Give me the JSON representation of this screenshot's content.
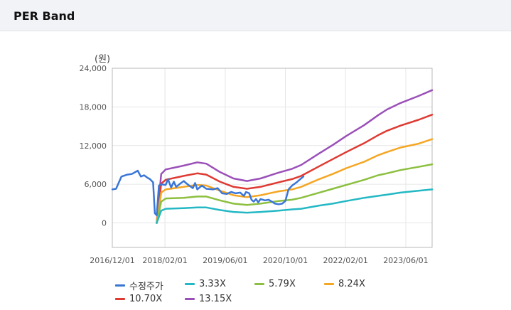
{
  "header": {
    "title": "PER Band"
  },
  "chart_data": {
    "type": "line",
    "unit_label": "(원)",
    "y_ticks": [
      "24,000",
      "18,000",
      "12,000",
      "6,000",
      "0"
    ],
    "y_tick_values": [
      24000,
      18000,
      12000,
      6000,
      0
    ],
    "ylim": [
      -3800,
      24000
    ],
    "x_ticks": [
      "2016/12/01",
      "2018/02/01",
      "2019/06/01",
      "2020/10/01",
      "2022/02/01",
      "2023/06/01"
    ],
    "x_tick_values": [
      2016.917,
      2018.083,
      2019.417,
      2020.75,
      2022.083,
      2023.417
    ],
    "xlim": [
      2016.917,
      2024.0
    ],
    "grid": true,
    "legend_position": "bottom",
    "series": [
      {
        "name": "수정주가",
        "color": "#3a76d6",
        "points": [
          [
            2016.92,
            5200
          ],
          [
            2017.0,
            5300
          ],
          [
            2017.12,
            7200
          ],
          [
            2017.25,
            7500
          ],
          [
            2017.35,
            7600
          ],
          [
            2017.48,
            8100
          ],
          [
            2017.55,
            7200
          ],
          [
            2017.62,
            7400
          ],
          [
            2017.7,
            7000
          ],
          [
            2017.75,
            6800
          ],
          [
            2017.82,
            6300
          ],
          [
            2017.86,
            1500
          ],
          [
            2017.9,
            1200
          ],
          [
            2017.95,
            5800
          ],
          [
            2018.0,
            6000
          ],
          [
            2018.1,
            5900
          ],
          [
            2018.15,
            6800
          ],
          [
            2018.22,
            5500
          ],
          [
            2018.28,
            6400
          ],
          [
            2018.33,
            5600
          ],
          [
            2018.42,
            6100
          ],
          [
            2018.5,
            6500
          ],
          [
            2018.55,
            6200
          ],
          [
            2018.62,
            5800
          ],
          [
            2018.7,
            5400
          ],
          [
            2018.75,
            6200
          ],
          [
            2018.8,
            5200
          ],
          [
            2018.9,
            5800
          ],
          [
            2019.0,
            5300
          ],
          [
            2019.15,
            5200
          ],
          [
            2019.25,
            5400
          ],
          [
            2019.35,
            4600
          ],
          [
            2019.45,
            4500
          ],
          [
            2019.55,
            4800
          ],
          [
            2019.65,
            4600
          ],
          [
            2019.75,
            4700
          ],
          [
            2019.83,
            4200
          ],
          [
            2019.88,
            4800
          ],
          [
            2019.95,
            4600
          ],
          [
            2020.0,
            3600
          ],
          [
            2020.05,
            3300
          ],
          [
            2020.1,
            3700
          ],
          [
            2020.15,
            3200
          ],
          [
            2020.2,
            3700
          ],
          [
            2020.3,
            3500
          ],
          [
            2020.38,
            3600
          ],
          [
            2020.45,
            3300
          ],
          [
            2020.52,
            3000
          ],
          [
            2020.6,
            2900
          ],
          [
            2020.68,
            3000
          ],
          [
            2020.75,
            3400
          ],
          [
            2020.82,
            5200
          ],
          [
            2020.9,
            5800
          ],
          [
            2021.0,
            6300
          ],
          [
            2021.08,
            6800
          ],
          [
            2021.15,
            7200
          ]
        ]
      },
      {
        "name": "3.33X",
        "color": "#23b8c4",
        "points": [
          [
            2017.9,
            0
          ],
          [
            2018.0,
            1900
          ],
          [
            2018.1,
            2200
          ],
          [
            2018.5,
            2300
          ],
          [
            2018.8,
            2400
          ],
          [
            2019.0,
            2400
          ],
          [
            2019.3,
            2000
          ],
          [
            2019.6,
            1700
          ],
          [
            2019.9,
            1600
          ],
          [
            2020.2,
            1700
          ],
          [
            2020.6,
            1900
          ],
          [
            2020.9,
            2100
          ],
          [
            2021.1,
            2200
          ],
          [
            2021.5,
            2700
          ],
          [
            2021.8,
            3000
          ],
          [
            2022.1,
            3400
          ],
          [
            2022.5,
            3900
          ],
          [
            2022.8,
            4200
          ],
          [
            2023.0,
            4400
          ],
          [
            2023.3,
            4700
          ],
          [
            2023.7,
            5000
          ],
          [
            2024.0,
            5200
          ]
        ]
      },
      {
        "name": "5.79X",
        "color": "#8cbf3f",
        "points": [
          [
            2017.9,
            0
          ],
          [
            2018.0,
            3300
          ],
          [
            2018.1,
            3800
          ],
          [
            2018.5,
            3900
          ],
          [
            2018.8,
            4100
          ],
          [
            2019.0,
            4100
          ],
          [
            2019.3,
            3500
          ],
          [
            2019.6,
            3000
          ],
          [
            2019.9,
            2800
          ],
          [
            2020.2,
            3000
          ],
          [
            2020.6,
            3400
          ],
          [
            2020.9,
            3600
          ],
          [
            2021.1,
            3900
          ],
          [
            2021.5,
            4700
          ],
          [
            2021.8,
            5300
          ],
          [
            2022.1,
            5900
          ],
          [
            2022.5,
            6700
          ],
          [
            2022.8,
            7400
          ],
          [
            2023.0,
            7700
          ],
          [
            2023.3,
            8200
          ],
          [
            2023.7,
            8700
          ],
          [
            2024.0,
            9100
          ]
        ]
      },
      {
        "name": "8.24X",
        "color": "#f5a623",
        "points": [
          [
            2017.9,
            0
          ],
          [
            2018.0,
            4700
          ],
          [
            2018.1,
            5200
          ],
          [
            2018.5,
            5600
          ],
          [
            2018.8,
            5900
          ],
          [
            2019.0,
            5800
          ],
          [
            2019.3,
            5000
          ],
          [
            2019.6,
            4300
          ],
          [
            2019.9,
            4000
          ],
          [
            2020.2,
            4300
          ],
          [
            2020.6,
            4900
          ],
          [
            2020.9,
            5200
          ],
          [
            2021.1,
            5600
          ],
          [
            2021.5,
            6800
          ],
          [
            2021.8,
            7600
          ],
          [
            2022.1,
            8500
          ],
          [
            2022.5,
            9500
          ],
          [
            2022.8,
            10500
          ],
          [
            2023.0,
            11000
          ],
          [
            2023.3,
            11700
          ],
          [
            2023.7,
            12300
          ],
          [
            2024.0,
            13000
          ]
        ]
      },
      {
        "name": "10.70X",
        "color": "#de3a32",
        "points": [
          [
            2017.9,
            0
          ],
          [
            2018.0,
            6100
          ],
          [
            2018.1,
            6700
          ],
          [
            2018.5,
            7300
          ],
          [
            2018.8,
            7700
          ],
          [
            2019.0,
            7500
          ],
          [
            2019.3,
            6400
          ],
          [
            2019.6,
            5600
          ],
          [
            2019.9,
            5300
          ],
          [
            2020.2,
            5600
          ],
          [
            2020.6,
            6300
          ],
          [
            2020.9,
            6800
          ],
          [
            2021.1,
            7300
          ],
          [
            2021.5,
            8800
          ],
          [
            2021.8,
            9900
          ],
          [
            2022.1,
            11000
          ],
          [
            2022.5,
            12400
          ],
          [
            2022.8,
            13600
          ],
          [
            2023.0,
            14300
          ],
          [
            2023.3,
            15100
          ],
          [
            2023.7,
            16000
          ],
          [
            2024.0,
            16800
          ]
        ]
      },
      {
        "name": "13.15X",
        "color": "#9a50b8",
        "points": [
          [
            2017.9,
            0
          ],
          [
            2018.0,
            7600
          ],
          [
            2018.1,
            8300
          ],
          [
            2018.5,
            8900
          ],
          [
            2018.8,
            9400
          ],
          [
            2019.0,
            9200
          ],
          [
            2019.3,
            7900
          ],
          [
            2019.6,
            6900
          ],
          [
            2019.9,
            6500
          ],
          [
            2020.2,
            6900
          ],
          [
            2020.6,
            7800
          ],
          [
            2020.9,
            8400
          ],
          [
            2021.1,
            9000
          ],
          [
            2021.5,
            10800
          ],
          [
            2021.8,
            12100
          ],
          [
            2022.1,
            13500
          ],
          [
            2022.5,
            15200
          ],
          [
            2022.8,
            16700
          ],
          [
            2023.0,
            17600
          ],
          [
            2023.3,
            18600
          ],
          [
            2023.7,
            19700
          ],
          [
            2024.0,
            20600
          ]
        ]
      }
    ]
  }
}
